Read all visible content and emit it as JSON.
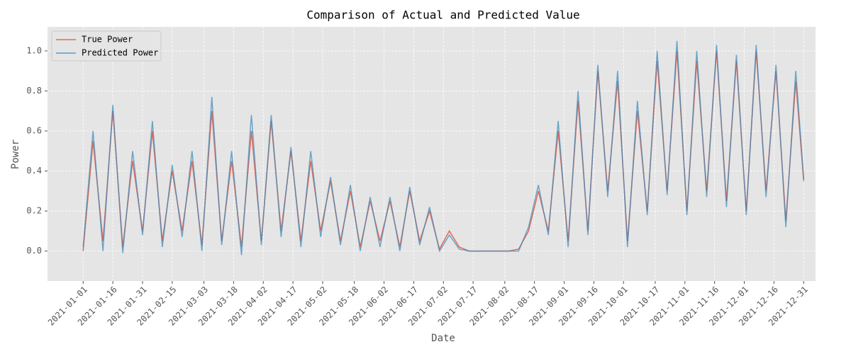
{
  "chart_data": {
    "type": "line",
    "title": "Comparison of Actual and Predicted Value",
    "x_label": "Date",
    "y_label": "Power",
    "x": [
      "2021-01-01",
      "2021-01-06",
      "2021-01-11",
      "2021-01-16",
      "2021-01-21",
      "2021-01-26",
      "2021-01-31",
      "2021-02-05",
      "2021-02-10",
      "2021-02-15",
      "2021-02-20",
      "2021-02-25",
      "2021-03-02",
      "2021-03-07",
      "2021-03-12",
      "2021-03-17",
      "2021-03-22",
      "2021-03-27",
      "2021-04-01",
      "2021-04-06",
      "2021-04-11",
      "2021-04-16",
      "2021-04-21",
      "2021-04-26",
      "2021-05-01",
      "2021-05-06",
      "2021-05-11",
      "2021-05-16",
      "2021-05-21",
      "2021-05-26",
      "2021-05-31",
      "2021-06-05",
      "2021-06-10",
      "2021-06-15",
      "2021-06-20",
      "2021-06-25",
      "2021-06-30",
      "2021-07-05",
      "2021-07-10",
      "2021-07-15",
      "2021-07-20",
      "2021-07-25",
      "2021-07-30",
      "2021-08-04",
      "2021-08-09",
      "2021-08-14",
      "2021-08-19",
      "2021-08-24",
      "2021-08-29",
      "2021-09-03",
      "2021-09-08",
      "2021-09-13",
      "2021-09-18",
      "2021-09-23",
      "2021-09-28",
      "2021-10-03",
      "2021-10-08",
      "2021-10-13",
      "2021-10-18",
      "2021-10-23",
      "2021-10-28",
      "2021-11-02",
      "2021-11-07",
      "2021-11-12",
      "2021-11-17",
      "2021-11-22",
      "2021-11-27",
      "2021-12-02",
      "2021-12-07",
      "2021-12-12",
      "2021-12-17",
      "2021-12-22",
      "2021-12-27",
      "2021-12-31"
    ],
    "series": [
      {
        "name": "True Power",
        "color": "#e24a33",
        "values": [
          0.0,
          0.55,
          0.05,
          0.7,
          0.02,
          0.45,
          0.1,
          0.6,
          0.05,
          0.4,
          0.1,
          0.45,
          0.03,
          0.7,
          0.05,
          0.45,
          0.02,
          0.6,
          0.05,
          0.65,
          0.1,
          0.5,
          0.05,
          0.45,
          0.1,
          0.35,
          0.05,
          0.3,
          0.02,
          0.25,
          0.05,
          0.25,
          0.02,
          0.3,
          0.05,
          0.2,
          0.01,
          0.1,
          0.02,
          0.0,
          0.0,
          0.0,
          0.0,
          0.0,
          0.01,
          0.1,
          0.3,
          0.1,
          0.6,
          0.05,
          0.75,
          0.1,
          0.9,
          0.3,
          0.85,
          0.05,
          0.7,
          0.2,
          0.95,
          0.3,
          1.0,
          0.2,
          0.95,
          0.3,
          1.0,
          0.25,
          0.95,
          0.2,
          1.0,
          0.3,
          0.9,
          0.15,
          0.85,
          0.35
        ]
      },
      {
        "name": "Predicted Power",
        "color": "#348abd",
        "values": [
          0.02,
          0.6,
          0.0,
          0.73,
          -0.01,
          0.5,
          0.08,
          0.65,
          0.02,
          0.43,
          0.07,
          0.5,
          0.0,
          0.77,
          0.03,
          0.5,
          -0.02,
          0.68,
          0.03,
          0.68,
          0.07,
          0.52,
          0.02,
          0.5,
          0.07,
          0.37,
          0.03,
          0.33,
          0.0,
          0.27,
          0.02,
          0.27,
          0.0,
          0.32,
          0.03,
          0.22,
          0.0,
          0.08,
          0.01,
          0.0,
          0.0,
          0.0,
          0.0,
          0.0,
          0.0,
          0.12,
          0.33,
          0.08,
          0.65,
          0.02,
          0.8,
          0.08,
          0.93,
          0.27,
          0.9,
          0.02,
          0.75,
          0.18,
          1.0,
          0.28,
          1.05,
          0.18,
          1.0,
          0.27,
          1.03,
          0.22,
          0.98,
          0.18,
          1.03,
          0.27,
          0.93,
          0.12,
          0.9,
          0.36
        ]
      }
    ],
    "xlim": [
      "2020-12-14",
      "2022-01-06"
    ],
    "xticks": [
      "2021-01-01",
      "2021-01-16",
      "2021-01-31",
      "2021-02-15",
      "2021-03-03",
      "2021-03-18",
      "2021-04-02",
      "2021-04-17",
      "2021-05-02",
      "2021-05-18",
      "2021-06-02",
      "2021-06-17",
      "2021-07-02",
      "2021-07-17",
      "2021-08-02",
      "2021-08-17",
      "2021-09-01",
      "2021-09-16",
      "2021-10-01",
      "2021-10-17",
      "2021-11-01",
      "2021-11-16",
      "2021-12-01",
      "2021-12-16",
      "2021-12-31"
    ],
    "ylim": [
      -0.15,
      1.12
    ],
    "yticks": [
      {
        "value": 0,
        "label": "0.0"
      },
      0.2,
      0.4,
      0.6,
      0.8,
      {
        "value": 1,
        "label": "1.0"
      }
    ],
    "grid": true,
    "legend": "upper left"
  }
}
